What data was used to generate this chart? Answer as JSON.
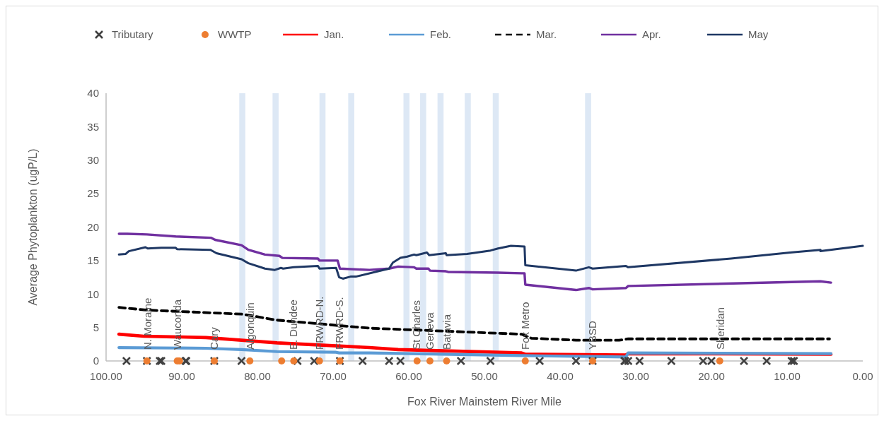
{
  "chart_data": {
    "type": "line",
    "xlabel": "Fox River Mainstem River Mile",
    "ylabel": "Average Phytoplankton (ugP/L)",
    "xlim": [
      100,
      0
    ],
    "xticks": [
      {
        "value": 100,
        "label": "100.00"
      },
      {
        "value": 90,
        "label": "90.00"
      },
      {
        "value": 80,
        "label": "80.00"
      },
      {
        "value": 70,
        "label": "70.00"
      },
      {
        "value": 60,
        "label": "60.00"
      },
      {
        "value": 50,
        "label": "50.00"
      },
      {
        "value": 40,
        "label": "40.00"
      },
      {
        "value": 30,
        "label": "30.00"
      },
      {
        "value": 20,
        "label": "20.00"
      },
      {
        "value": 10,
        "label": "10.00"
      },
      {
        "value": 0,
        "label": "0.00"
      }
    ],
    "ylim": [
      0,
      40
    ],
    "yticks": [
      0,
      5,
      10,
      15,
      20,
      25,
      30,
      35,
      40
    ],
    "grid": false,
    "legend": "top",
    "series": [
      {
        "name": "Tributary",
        "type": "scatter",
        "marker": "cross",
        "color": "#404040",
        "x": [
          97.3,
          94.6,
          92.9,
          92.7,
          89.5,
          89.4,
          85.7,
          82.1,
          74.7,
          72.5,
          69.1,
          66.1,
          62.6,
          61.1,
          53.1,
          49.2,
          42.7,
          37.9,
          35.7,
          31.5,
          31.4,
          31.0,
          29.5,
          25.3,
          21.1,
          20.0,
          15.7,
          12.7,
          9.4,
          9.1
        ],
        "values": [
          0,
          0,
          0,
          0,
          0,
          0,
          0,
          0,
          0,
          0,
          0,
          0,
          0,
          0,
          0,
          0,
          0,
          0,
          0,
          0,
          0,
          0,
          0,
          0,
          0,
          0,
          0,
          0,
          0,
          0
        ]
      },
      {
        "name": "WWTP",
        "type": "scatter",
        "marker": "circle",
        "color": "#ed7d31",
        "x": [
          94.6,
          90.6,
          90.3,
          85.7,
          81.0,
          76.8,
          75.2,
          71.8,
          69.1,
          58.9,
          57.2,
          55.0,
          44.6,
          35.7,
          18.9
        ],
        "values": [
          0,
          0,
          0,
          0,
          0,
          0,
          0,
          0,
          0,
          0,
          0,
          0,
          0,
          0,
          0
        ]
      },
      {
        "name": "Jan.",
        "color": "#ff0000",
        "x": [
          98.3,
          95.0,
          86.8,
          82.1,
          77.4,
          65.2,
          61.4,
          45.1,
          44.6,
          31.3,
          31.0,
          4.2
        ],
        "values": [
          4.0,
          3.7,
          3.5,
          3.1,
          2.7,
          2.0,
          1.7,
          1.2,
          1.0,
          0.9,
          1.1,
          1.0
        ]
      },
      {
        "name": "Feb.",
        "color": "#5b9bd5",
        "x": [
          98.3,
          86.8,
          82.1,
          77.4,
          69.6,
          69.2,
          65.2,
          45.1,
          31.3,
          31.0,
          4.2
        ],
        "values": [
          2.0,
          1.9,
          1.7,
          1.4,
          1.3,
          1.2,
          1.2,
          0.8,
          0.6,
          1.2,
          1.1
        ]
      },
      {
        "name": "Mar.",
        "color": "#000000",
        "line_style": "dashed",
        "x": [
          98.3,
          94.6,
          82.1,
          77.4,
          65.2,
          45.1,
          43.8,
          37.9,
          32.2,
          31.0,
          4.4
        ],
        "values": [
          8.0,
          7.6,
          7.0,
          6.1,
          4.9,
          4.0,
          3.4,
          3.1,
          3.1,
          3.3,
          3.3
        ]
      },
      {
        "name": "Apr.",
        "color": "#7030a0",
        "x": [
          98.3,
          97.2,
          94.6,
          90.8,
          86.1,
          85.6,
          82.1,
          81.2,
          79.0,
          77.1,
          76.7,
          72.0,
          71.8,
          69.4,
          69.1,
          65.2,
          62.6,
          61.4,
          59.3,
          59.0,
          57.4,
          57.2,
          55.1,
          54.8,
          48.2,
          45.1,
          44.7,
          44.6,
          37.9,
          36.2,
          35.7,
          31.3,
          31.0,
          5.6,
          4.2
        ],
        "values": [
          19.0,
          19.0,
          18.9,
          18.6,
          18.4,
          18.1,
          17.3,
          16.6,
          15.9,
          15.7,
          15.4,
          15.3,
          15.0,
          15.0,
          13.8,
          13.6,
          13.8,
          14.1,
          14.0,
          13.8,
          13.8,
          13.5,
          13.4,
          13.3,
          13.2,
          13.1,
          13.1,
          11.4,
          10.6,
          10.9,
          10.7,
          10.9,
          11.2,
          11.9,
          11.7
        ]
      },
      {
        "name": "May",
        "color": "#1f3864",
        "x": [
          98.3,
          97.4,
          97.0,
          94.8,
          94.5,
          92.7,
          90.8,
          90.6,
          86.2,
          85.4,
          82.1,
          81.2,
          79.0,
          77.7,
          76.9,
          76.6,
          75.2,
          72.0,
          71.8,
          69.6,
          69.2,
          68.7,
          67.7,
          67.0,
          62.6,
          62.1,
          61.1,
          60.2,
          59.3,
          59.0,
          57.6,
          57.3,
          55.1,
          55.0,
          52.3,
          49.2,
          48.2,
          46.5,
          44.7,
          44.6,
          37.9,
          36.2,
          35.7,
          31.3,
          31.0,
          17.4,
          9.6,
          5.6,
          5.6,
          0
        ],
        "values": [
          15.9,
          16.0,
          16.4,
          17.0,
          16.8,
          16.9,
          16.9,
          16.7,
          16.6,
          16.1,
          15.2,
          14.6,
          13.8,
          13.6,
          13.9,
          13.8,
          14.0,
          14.2,
          13.8,
          13.9,
          12.5,
          12.3,
          12.6,
          12.6,
          13.8,
          14.7,
          15.4,
          15.6,
          15.9,
          15.8,
          16.2,
          15.8,
          16.1,
          15.8,
          16.0,
          16.5,
          16.8,
          17.2,
          17.1,
          14.3,
          13.5,
          14.0,
          13.8,
          14.2,
          14.0,
          15.3,
          16.2,
          16.6,
          16.4,
          17.2
        ]
      }
    ],
    "bands": [
      {
        "axis": "x",
        "from": 82.4,
        "to": 81.6,
        "color": "#dde8f5"
      },
      {
        "axis": "x",
        "from": 78.0,
        "to": 77.2,
        "color": "#dde8f5"
      },
      {
        "axis": "x",
        "from": 71.8,
        "to": 71.0,
        "color": "#dde8f5"
      },
      {
        "axis": "x",
        "from": 68.0,
        "to": 67.2,
        "color": "#dde8f5"
      },
      {
        "axis": "x",
        "from": 60.7,
        "to": 59.9,
        "color": "#dde8f5"
      },
      {
        "axis": "x",
        "from": 58.5,
        "to": 57.7,
        "color": "#dde8f5"
      },
      {
        "axis": "x",
        "from": 56.2,
        "to": 55.4,
        "color": "#dde8f5"
      },
      {
        "axis": "x",
        "from": 52.6,
        "to": 51.8,
        "color": "#dde8f5"
      },
      {
        "axis": "x",
        "from": 48.9,
        "to": 48.1,
        "color": "#dde8f5"
      },
      {
        "axis": "x",
        "from": 36.7,
        "to": 35.9,
        "color": "#dde8f5"
      }
    ],
    "annotations": [
      {
        "text": "N. Moraine",
        "x": 94.5,
        "y": 0
      },
      {
        "text": "Wauconda",
        "x": 90.6,
        "y": 0
      },
      {
        "text": "Cary",
        "x": 85.7,
        "y": 0
      },
      {
        "text": "Algonquin",
        "x": 80.9,
        "y": 0
      },
      {
        "text": "E. Dundee",
        "x": 75.2,
        "y": 0
      },
      {
        "text": "FRWRD-N.",
        "x": 71.8,
        "y": 0
      },
      {
        "text": "FRWRD-S.",
        "x": 69.2,
        "y": 0
      },
      {
        "text": "St Charles",
        "x": 59.0,
        "y": 0
      },
      {
        "text": "Geneva",
        "x": 57.2,
        "y": 0
      },
      {
        "text": "Batavia",
        "x": 55.0,
        "y": 0
      },
      {
        "text": "Fox Metro",
        "x": 44.6,
        "y": 0
      },
      {
        "text": "YBSD",
        "x": 35.7,
        "y": 0
      },
      {
        "text": "Sheridan",
        "x": 18.8,
        "y": 0
      }
    ]
  }
}
